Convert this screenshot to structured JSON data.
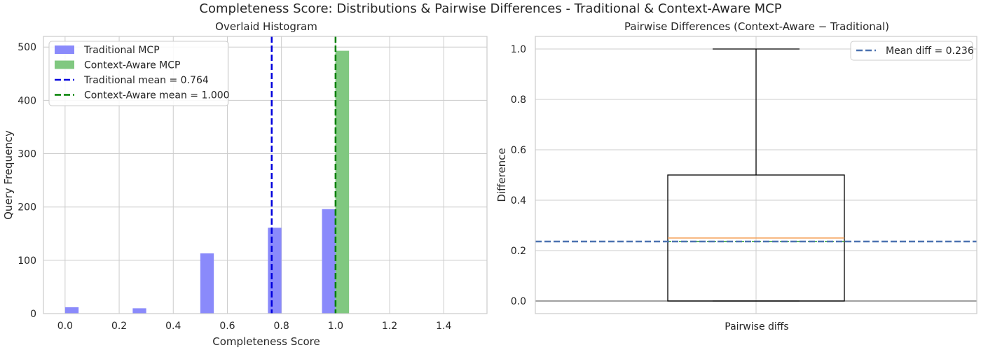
{
  "figure": {
    "suptitle": "Completeness Score: Distributions & Pairwise Differences - Traditional & Context-Aware MCP"
  },
  "chart_data": [
    {
      "type": "bar",
      "subtype": "overlaid-histogram",
      "title": "Overlaid Histogram",
      "xlabel": "Completeness Score",
      "ylabel": "Query Frequency",
      "xlim": [
        -0.08,
        1.56
      ],
      "ylim": [
        0,
        520
      ],
      "xticks": [
        0.0,
        0.2,
        0.4,
        0.6,
        0.8,
        1.0,
        1.2,
        1.4
      ],
      "xtick_labels": [
        "0.0",
        "0.2",
        "0.4",
        "0.6",
        "0.8",
        "1.0",
        "1.2",
        "1.4"
      ],
      "yticks": [
        0,
        100,
        200,
        300,
        400,
        500
      ],
      "ytick_labels": [
        "0",
        "100",
        "200",
        "300",
        "400",
        "500"
      ],
      "bin_width": 0.05,
      "grid": true,
      "legend_position": "top-left",
      "series": [
        {
          "name": "Traditional MCP",
          "color": "#8a8afb",
          "bins": [
            {
              "x0": 0.0,
              "count": 12
            },
            {
              "x0": 0.25,
              "count": 10
            },
            {
              "x0": 0.5,
              "count": 113
            },
            {
              "x0": 0.75,
              "count": 161
            },
            {
              "x0": 0.95,
              "count": 196
            }
          ]
        },
        {
          "name": "Context-Aware MCP",
          "color": "#80c880",
          "bins": [
            {
              "x0": 1.0,
              "count": 493
            }
          ]
        }
      ],
      "mean_lines": [
        {
          "label": "Traditional mean = 0.764",
          "value": 0.764,
          "color": "#0000dd"
        },
        {
          "label": "Context-Aware mean = 1.000",
          "value": 1.0,
          "color": "#008000"
        }
      ]
    },
    {
      "type": "box",
      "title": "Pairwise Differences (Context-Aware − Traditional)",
      "xlabel": "",
      "ylabel": "Difference",
      "category": "Pairwise diffs",
      "ylim": [
        -0.05,
        1.05
      ],
      "yticks": [
        0.0,
        0.2,
        0.4,
        0.6,
        0.8,
        1.0
      ],
      "ytick_labels": [
        "0.0",
        "0.2",
        "0.4",
        "0.6",
        "0.8",
        "1.0"
      ],
      "grid": true,
      "legend_position": "top-right",
      "box": {
        "whisker_low": 0.0,
        "q1": 0.0,
        "median": 0.25,
        "q3": 0.5,
        "whisker_high": 1.0,
        "mean": 0.236
      },
      "mean_line": {
        "label": "Mean diff = 0.236",
        "value": 0.236,
        "color": "#4c72b0"
      },
      "zero_line": {
        "value": 0.0,
        "color": "#808080"
      }
    }
  ]
}
